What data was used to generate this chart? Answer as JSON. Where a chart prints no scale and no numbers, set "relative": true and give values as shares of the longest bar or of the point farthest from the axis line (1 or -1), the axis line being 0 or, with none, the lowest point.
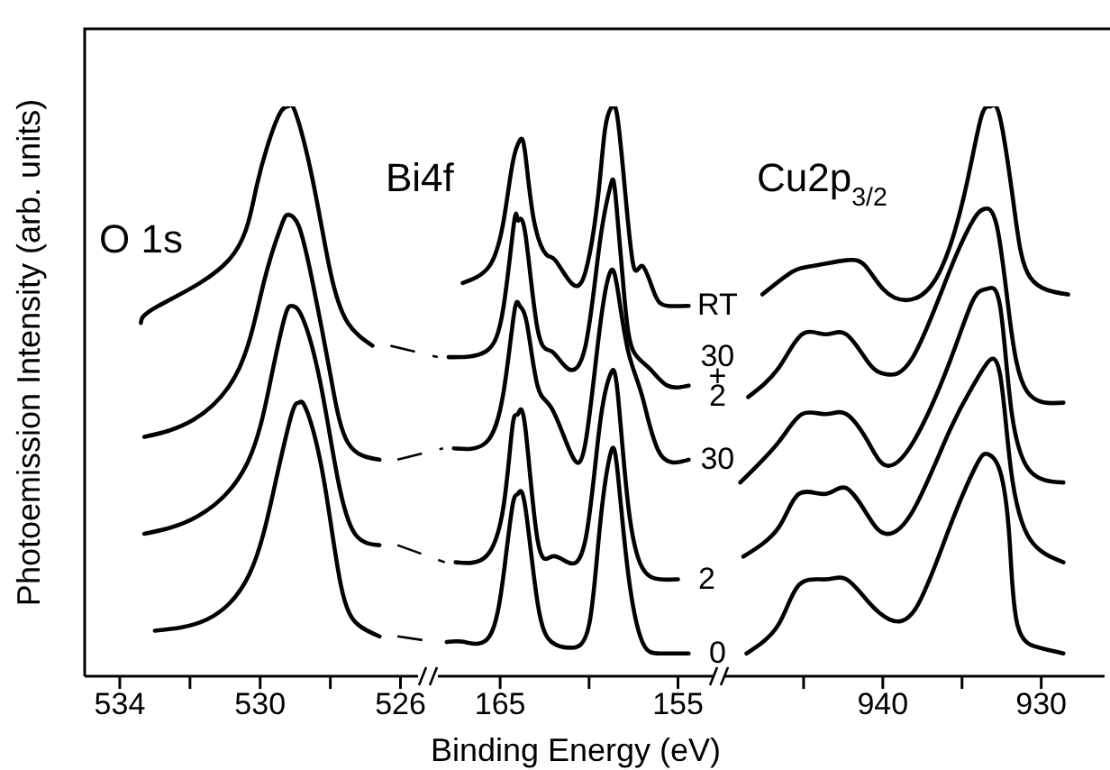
{
  "chart_data": [
    {
      "type": "line",
      "title": "O 1s",
      "ylabel": "Photoemission Intensity (arb. units)",
      "relative": true,
      "marker": "none",
      "line_style": "solid",
      "legend": false,
      "grid": false,
      "xlim": [
        535,
        525.5
      ],
      "xticks": [
        534,
        {
          "value": 532,
          "label": null
        },
        530,
        {
          "value": 528,
          "label": null
        },
        526
      ],
      "series": [
        {
          "color": "#000000",
          "x": [
            533.4,
            532.9,
            530.9,
            530.1,
            529.5,
            529.2,
            529.0,
            528.5,
            528.0,
            527.5,
            526.8
          ],
          "values": [
            0.62,
            0.65,
            0.73,
            0.86,
            0.98,
            1,
            0.99,
            0.87,
            0.71,
            0.62,
            0.58
          ]
        },
        {
          "color": "#000000",
          "x": [
            533.3,
            531.9,
            530.6,
            529.9,
            529.4,
            529.2,
            528.9,
            528.5,
            528.0,
            527.5,
            526.6
          ],
          "values": [
            0.42,
            0.45,
            0.54,
            0.69,
            0.79,
            0.81,
            0.79,
            0.69,
            0.53,
            0.41,
            0.38
          ]
        },
        {
          "color": "#000000",
          "x": [
            533.3,
            531.8,
            530.4,
            529.7,
            529.3,
            529.1,
            528.8,
            528.3,
            527.8,
            527.3,
            526.6
          ],
          "values": [
            0.25,
            0.28,
            0.37,
            0.52,
            0.63,
            0.65,
            0.63,
            0.52,
            0.35,
            0.25,
            0.23
          ]
        },
        {
          "color": "#000000",
          "x": [
            533.0,
            531.5,
            530.3,
            529.6,
            529.1,
            528.9,
            528.7,
            528.2,
            527.7,
            527.2,
            526.6
          ],
          "values": [
            0.08,
            0.1,
            0.18,
            0.33,
            0.46,
            0.48,
            0.47,
            0.35,
            0.16,
            0.09,
            0.07
          ]
        }
      ]
    },
    {
      "type": "line",
      "title": "Bi4f",
      "xlabel": "Binding Energy (eV)",
      "relative": true,
      "marker": "none",
      "line_style": "solid",
      "legend": false,
      "grid": false,
      "xlim": [
        168.5,
        153
      ],
      "xticks": [
        165,
        {
          "value": 160,
          "label": null
        },
        155
      ],
      "series": [
        {
          "name": "RT",
          "color": "#000000",
          "x": [
            167.1,
            165.6,
            164.8,
            164.3,
            163.9,
            163.6,
            163.1,
            162.4,
            161.9,
            161.0,
            160.2,
            159.5,
            159.1,
            158.7,
            158.4,
            158.0,
            157.5,
            157.0,
            156.3,
            155.6,
            154.4
          ],
          "values": [
            0.69,
            0.72,
            0.8,
            0.9,
            0.94,
            0.92,
            0.8,
            0.74,
            0.73,
            0.69,
            0.71,
            0.84,
            0.96,
            1,
            0.98,
            0.86,
            0.72,
            0.72,
            0.67,
            0.65,
            0.65
          ]
        },
        {
          "name": "30+2",
          "color": "#000000",
          "x": [
            167.9,
            165.8,
            164.8,
            164.2,
            164.0,
            163.6,
            162.9,
            162.1,
            161.2,
            160.2,
            159.4,
            158.8,
            158.5,
            158.0,
            157.5,
            156.6,
            155.6,
            154.4
          ],
          "values": [
            0.56,
            0.57,
            0.65,
            0.8,
            0.8,
            0.78,
            0.61,
            0.57,
            0.54,
            0.58,
            0.76,
            0.86,
            0.84,
            0.66,
            0.57,
            0.54,
            0.51,
            0.51
          ]
        },
        {
          "name": "30",
          "color": "#000000",
          "x": [
            167.6,
            165.8,
            164.8,
            164.2,
            163.9,
            163.5,
            162.9,
            162.1,
            161.0,
            160.2,
            159.4,
            158.8,
            158.4,
            157.8,
            157.0,
            156.0,
            154.4
          ],
          "values": [
            0.4,
            0.41,
            0.5,
            0.64,
            0.65,
            0.62,
            0.51,
            0.47,
            0.39,
            0.41,
            0.61,
            0.71,
            0.68,
            0.57,
            0.49,
            0.39,
            0.38
          ]
        },
        {
          "name": "2",
          "color": "#000000",
          "x": [
            167.5,
            165.8,
            164.8,
            164.3,
            164.0,
            163.6,
            162.9,
            162.1,
            161.2,
            160.2,
            159.4,
            158.8,
            158.4,
            157.8,
            157.0,
            156.0,
            155.0
          ],
          "values": [
            0.2,
            0.21,
            0.3,
            0.44,
            0.46,
            0.44,
            0.24,
            0.21,
            0.2,
            0.24,
            0.44,
            0.53,
            0.5,
            0.3,
            0.19,
            0.17,
            0.17
          ]
        },
        {
          "name": "0",
          "color": "#000000",
          "x": [
            168.0,
            167.0,
            165.6,
            164.8,
            164.3,
            164.0,
            163.6,
            162.9,
            162.1,
            161.0,
            160.0,
            159.4,
            158.8,
            158.4,
            157.8,
            157.0,
            156.0,
            154.4
          ],
          "values": [
            0.06,
            0.06,
            0.07,
            0.18,
            0.3,
            0.32,
            0.3,
            0.13,
            0.06,
            0.05,
            0.09,
            0.26,
            0.39,
            0.36,
            0.18,
            0.06,
            0.04,
            0.04
          ]
        }
      ]
    },
    {
      "type": "line",
      "title": "Cu2p$_{3/2}$",
      "relative": true,
      "marker": "none",
      "line_style": "solid",
      "legend": false,
      "grid": false,
      "xlim": [
        950,
        926
      ],
      "xticks": [
        {
          "value": 945,
          "label": null
        },
        940,
        {
          "value": 935,
          "label": null
        },
        930
      ],
      "series": [
        {
          "color": "#000000",
          "x": [
            947.6,
            945.7,
            944.4,
            942.3,
            941.1,
            940.0,
            938.5,
            936.6,
            934.9,
            933.8,
            933.2,
            932.6,
            931.7,
            930.7,
            928.3
          ],
          "values": [
            0.67,
            0.71,
            0.72,
            0.73,
            0.72,
            0.68,
            0.66,
            0.7,
            0.84,
            0.98,
            1,
            0.98,
            0.82,
            0.7,
            0.67
          ]
        },
        {
          "color": "#000000",
          "x": [
            948.5,
            946.6,
            945.1,
            943.6,
            942.3,
            940.9,
            939.8,
            938.1,
            935.8,
            934.3,
            933.6,
            932.8,
            932.0,
            930.9,
            928.6
          ],
          "values": [
            0.49,
            0.54,
            0.6,
            0.6,
            0.6,
            0.55,
            0.53,
            0.56,
            0.71,
            0.8,
            0.82,
            0.79,
            0.63,
            0.5,
            0.48
          ]
        },
        {
          "color": "#000000",
          "x": [
            949.0,
            946.6,
            945.1,
            943.6,
            942.3,
            940.9,
            939.8,
            938.1,
            935.8,
            934.3,
            933.4,
            932.6,
            931.9,
            930.7,
            928.6
          ],
          "values": [
            0.34,
            0.41,
            0.46,
            0.46,
            0.46,
            0.41,
            0.37,
            0.41,
            0.55,
            0.66,
            0.68,
            0.65,
            0.47,
            0.36,
            0.34
          ]
        },
        {
          "color": "#000000",
          "x": [
            948.8,
            946.6,
            945.3,
            943.6,
            942.3,
            940.9,
            939.8,
            938.1,
            935.8,
            934.3,
            933.4,
            932.6,
            931.9,
            930.7,
            928.6
          ],
          "values": [
            0.21,
            0.26,
            0.32,
            0.32,
            0.33,
            0.28,
            0.25,
            0.29,
            0.43,
            0.51,
            0.55,
            0.53,
            0.36,
            0.24,
            0.2
          ]
        },
        {
          "color": "#000000",
          "x": [
            948.6,
            946.6,
            945.3,
            943.6,
            942.3,
            940.9,
            939.6,
            937.9,
            935.8,
            934.1,
            933.4,
            932.6,
            932.0,
            931.5,
            930.1,
            928.6
          ],
          "values": [
            0.04,
            0.09,
            0.16,
            0.17,
            0.17,
            0.13,
            0.1,
            0.12,
            0.26,
            0.37,
            0.39,
            0.36,
            0.24,
            0.09,
            0.05,
            0.04
          ]
        }
      ]
    }
  ]
}
